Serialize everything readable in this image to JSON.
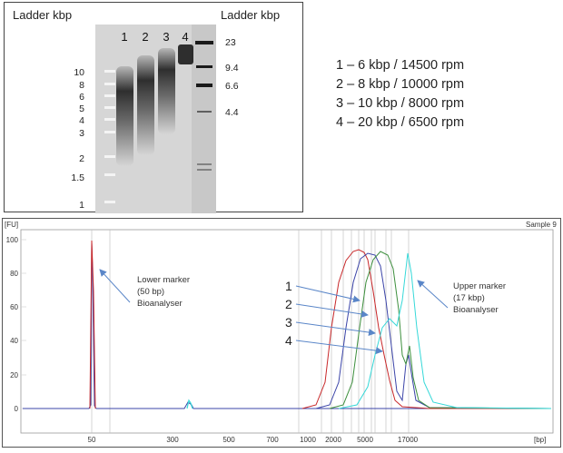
{
  "gel": {
    "left_title": "Ladder kbp",
    "right_title": "Ladder kbp",
    "lane_numbers": [
      "1",
      "2",
      "3",
      "4"
    ],
    "left_ladder_labels": [
      "10",
      "8",
      "6",
      "5",
      "4",
      "3",
      "2",
      "1.5",
      "1"
    ],
    "right_ladder_labels": [
      "23",
      "9.4",
      "6.6",
      "4.4"
    ]
  },
  "legend": {
    "lines": [
      "1 – 6 kbp / 14500 rpm",
      "2 – 8 kbp / 10000 rpm",
      "3 – 10 kbp / 8000 rpm",
      "4 – 20 kbp / 6500 rpm"
    ]
  },
  "trace": {
    "y_unit": "[FU]",
    "x_unit": "[bp]",
    "sample_label": "Sample 9",
    "y_ticks": [
      "100",
      "80",
      "60",
      "40",
      "20",
      "0"
    ],
    "x_ticks": [
      "50",
      "300",
      "500",
      "700",
      "1000",
      "2000",
      "5000",
      "17000"
    ],
    "lower_marker": [
      "Lower marker",
      "(50 bp)",
      "Bioanalyser"
    ],
    "upper_marker": [
      "Upper marker",
      "(17 kbp)",
      "Bioanalyser"
    ],
    "series_labels": [
      "1",
      "2",
      "3",
      "4"
    ],
    "colors": {
      "red": "#c8282a",
      "green": "#3d8f3d",
      "blue": "#3b44a8",
      "cyan": "#35d8d8",
      "arrow": "#5a86c8"
    }
  }
}
